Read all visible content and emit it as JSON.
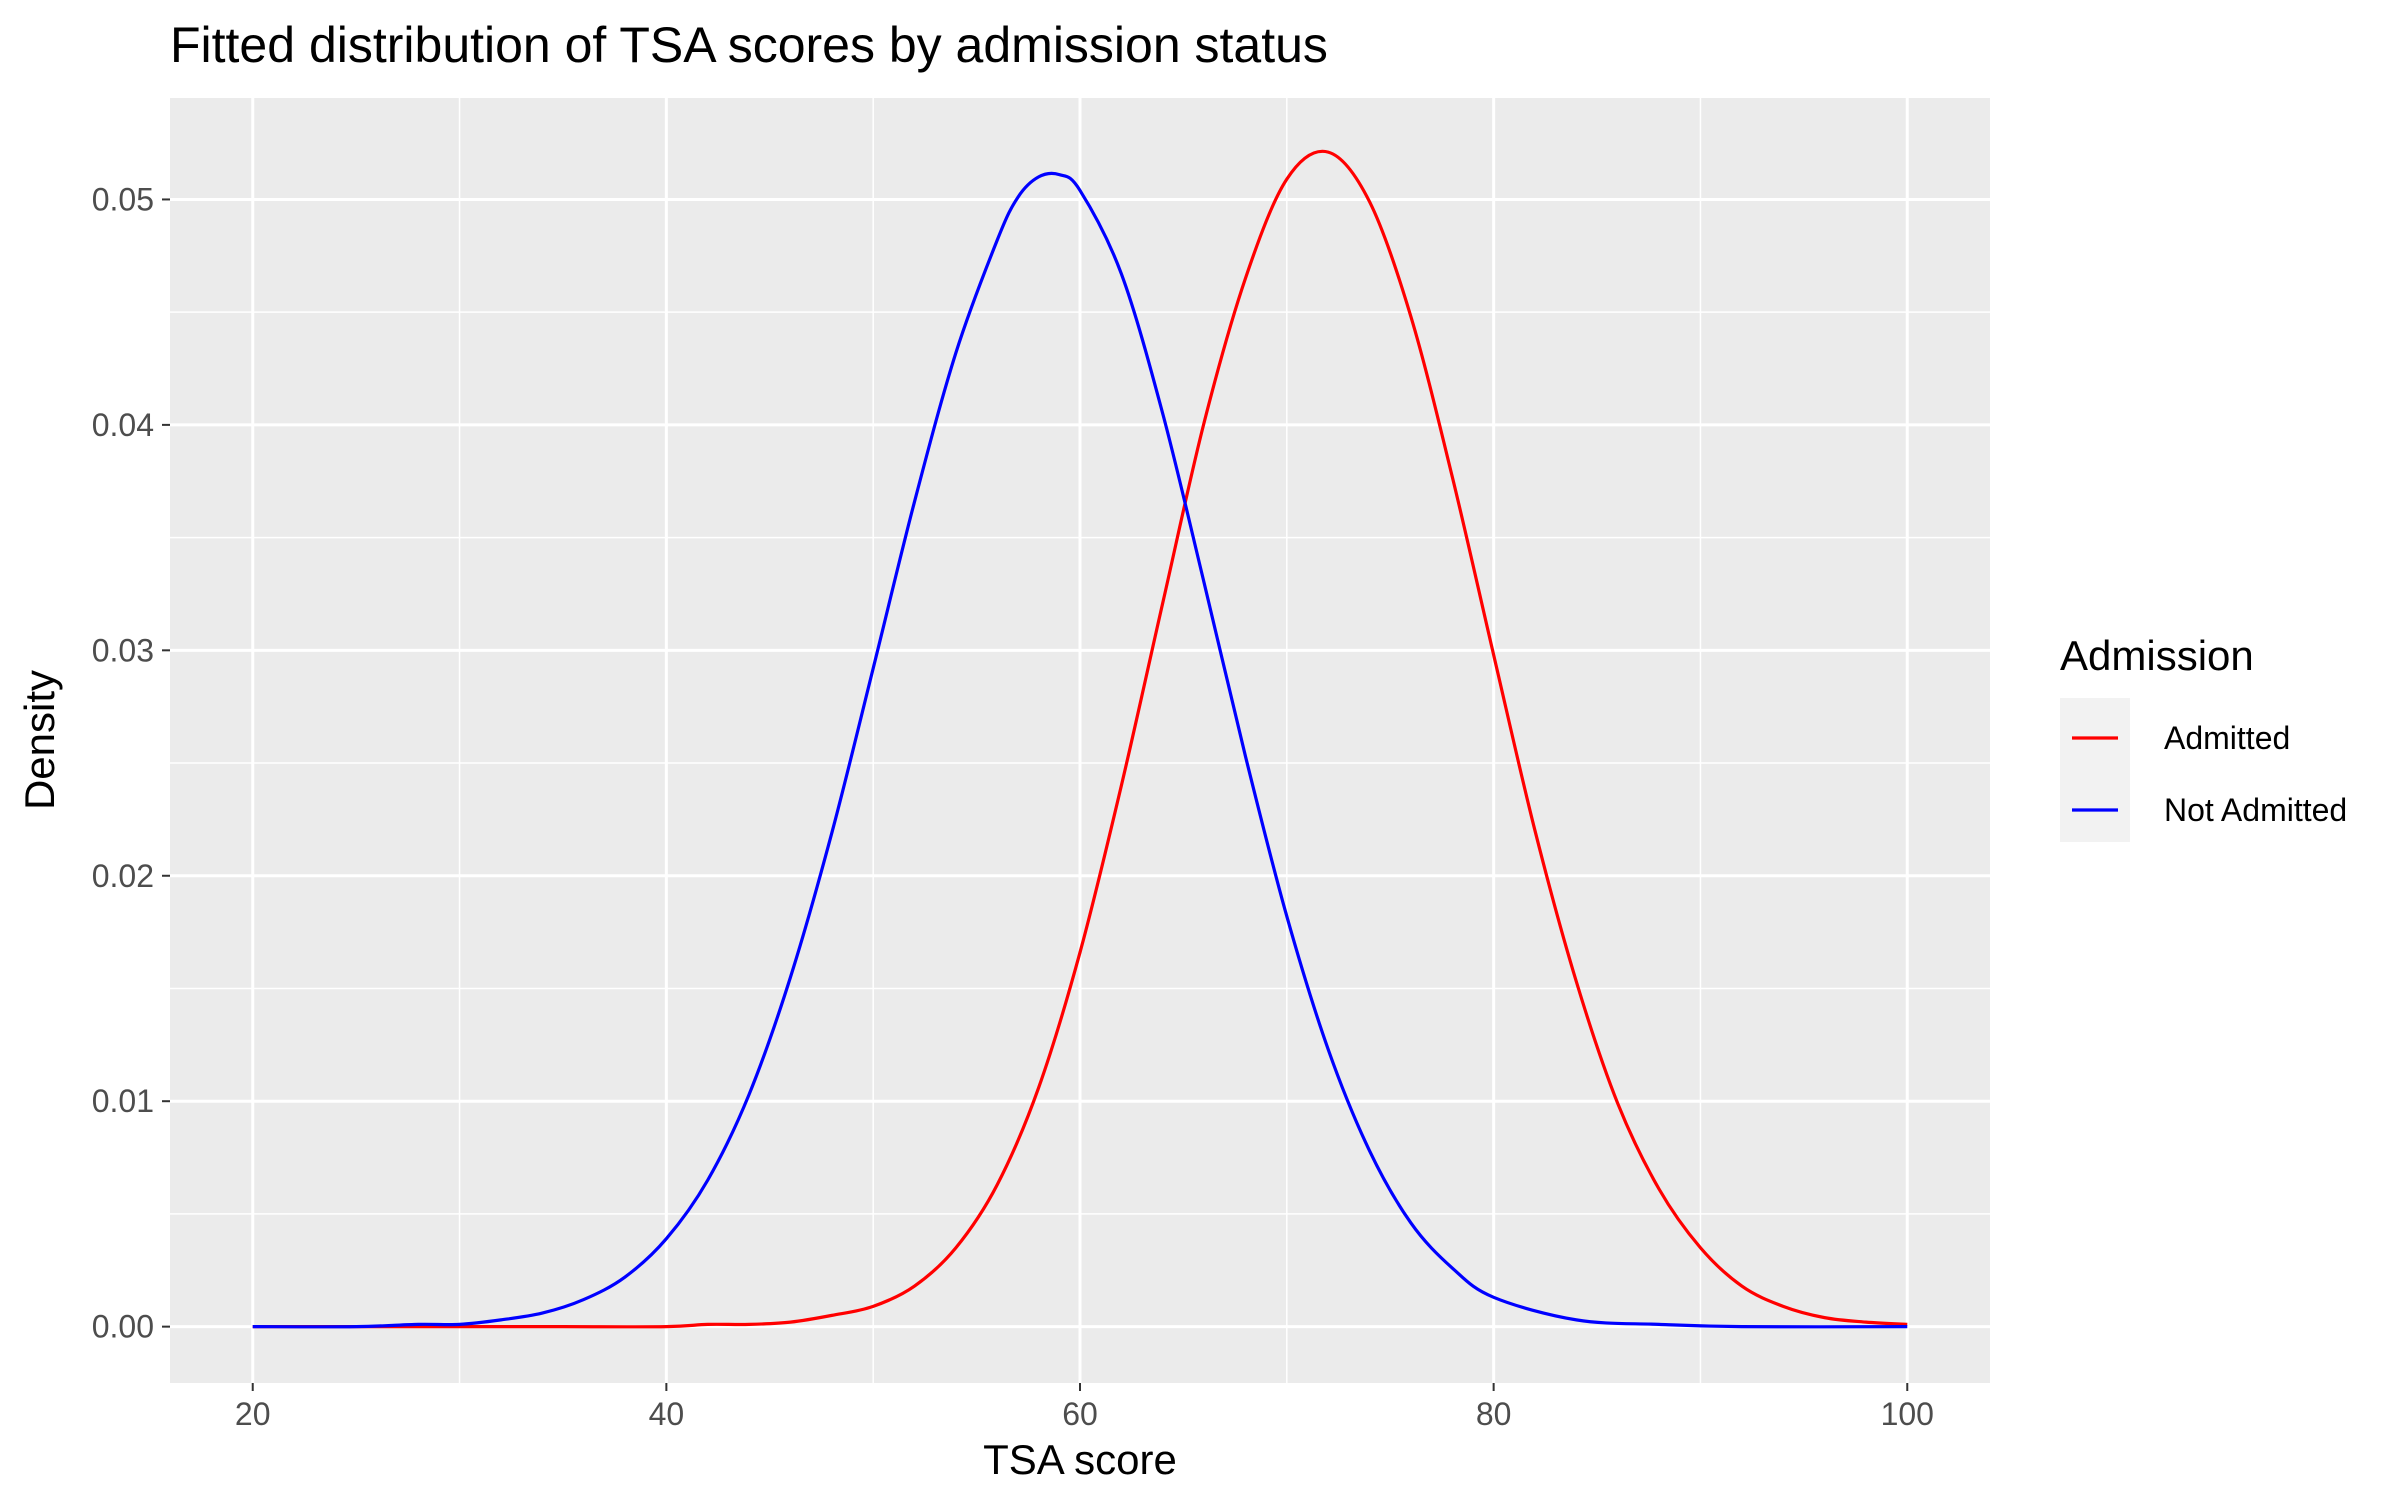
{
  "chart_data": {
    "type": "line",
    "title": "Fitted distribution of TSA scores by admission status",
    "xlabel": "TSA score",
    "ylabel": "Density",
    "xlim": [
      16,
      104
    ],
    "ylim": [
      -0.0025,
      0.0545
    ],
    "x_ticks": [
      20,
      40,
      60,
      80,
      100
    ],
    "x_tick_labels": [
      "20",
      "40",
      "60",
      "80",
      "100"
    ],
    "y_ticks": [
      0,
      0.01,
      0.02,
      0.03,
      0.04,
      0.05
    ],
    "y_tick_labels": [
      "0.00",
      "0.01",
      "0.02",
      "0.03",
      "0.04",
      "0.05"
    ],
    "grid": true,
    "panel_background": "#EBEBEB",
    "grid_color": "#FFFFFF",
    "legend": {
      "title": "Admission",
      "position": "right"
    },
    "series": [
      {
        "name": "Admitted",
        "color": "#FF0000",
        "x": [
          20,
          25,
          30,
          35,
          40,
          42,
          44,
          46,
          48,
          50,
          52,
          54,
          56,
          58,
          60,
          62,
          64,
          66,
          68,
          70,
          72,
          74,
          76,
          78,
          80,
          82,
          84,
          86,
          88,
          90,
          92,
          94,
          96,
          98,
          100
        ],
        "y": [
          0.0,
          0.0,
          0.0,
          0.0,
          0.0,
          0.0001,
          0.0001,
          0.0002,
          0.0005,
          0.0009,
          0.0018,
          0.0035,
          0.0063,
          0.0106,
          0.0166,
          0.024,
          0.0321,
          0.0401,
          0.0465,
          0.0509,
          0.0521,
          0.0499,
          0.0448,
          0.0377,
          0.0298,
          0.022,
          0.0153,
          0.0099,
          0.0061,
          0.0035,
          0.0018,
          0.0009,
          0.0004,
          0.0002,
          0.0001
        ]
      },
      {
        "name": "Not Admitted",
        "color": "#0000FF",
        "x": [
          20,
          25,
          28,
          30,
          32,
          34,
          36,
          38,
          40,
          42,
          44,
          46,
          48,
          50,
          52,
          54,
          56,
          57,
          58,
          59,
          60,
          62,
          64,
          66,
          68,
          70,
          72,
          74,
          76,
          78,
          80,
          84,
          88,
          92,
          100
        ],
        "y": [
          0.0,
          0.0,
          0.0001,
          0.0001,
          0.0003,
          0.0006,
          0.0012,
          0.0022,
          0.0039,
          0.0065,
          0.0103,
          0.0155,
          0.0219,
          0.0292,
          0.0366,
          0.0432,
          0.0482,
          0.0501,
          0.051,
          0.0511,
          0.0504,
          0.0467,
          0.0405,
          0.033,
          0.0253,
          0.0182,
          0.0123,
          0.0078,
          0.0046,
          0.0026,
          0.0013,
          0.0003,
          0.0001,
          0.0,
          0.0
        ]
      }
    ]
  }
}
